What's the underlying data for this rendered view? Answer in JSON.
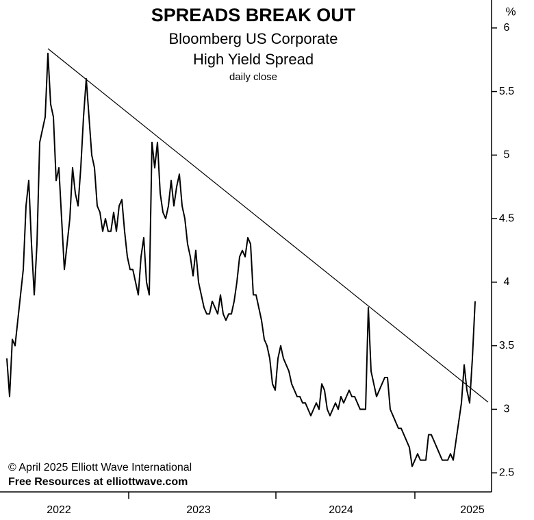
{
  "chart_data": {
    "type": "line",
    "title": "SPREADS BREAK OUT",
    "subtitle": [
      "Bloomberg US Corporate",
      "High Yield Spread"
    ],
    "note": "daily close",
    "y_unit": "%",
    "credits": [
      "© April 2025  Elliott Wave International",
      "Free Resources at elliottwave.com"
    ],
    "color": "#000000",
    "categories": [
      null,
      null,
      null,
      null,
      null,
      null,
      null,
      null,
      null,
      null,
      null,
      null,
      null,
      null,
      null,
      null,
      null,
      null,
      null,
      "2022",
      null,
      null,
      null,
      null,
      null,
      null,
      null,
      null,
      null,
      null,
      null,
      null,
      null,
      null,
      null,
      null,
      null,
      null,
      null,
      null,
      null,
      null,
      null,
      null,
      null,
      null,
      null,
      null,
      null,
      null,
      null,
      null,
      null,
      null,
      null,
      null,
      null,
      null,
      null,
      null,
      null,
      null,
      null,
      null,
      null,
      null,
      null,
      null,
      null,
      null,
      "2023",
      null,
      null,
      null,
      null,
      null,
      null,
      null,
      null,
      null,
      null,
      null,
      null,
      null,
      null,
      null,
      null,
      null,
      null,
      null,
      null,
      null,
      null,
      null,
      null,
      null,
      null,
      null,
      null,
      null,
      null,
      null,
      null,
      null,
      null,
      null,
      null,
      null,
      null,
      null,
      null,
      null,
      null,
      null,
      null,
      null,
      null,
      null,
      null,
      null,
      null,
      null,
      "2024",
      null,
      null,
      null,
      null,
      null,
      null,
      null,
      null,
      null,
      null,
      null,
      null,
      null,
      null,
      null,
      null,
      null,
      null,
      null,
      null,
      null,
      null,
      null,
      null,
      null,
      null,
      null,
      null,
      null,
      null,
      null,
      null,
      null,
      null,
      null,
      null,
      null,
      null,
      null,
      null,
      null,
      null,
      null,
      null,
      null,
      null,
      null,
      "2025",
      null
    ],
    "values": [
      3.4,
      3.1,
      3.55,
      3.5,
      3.7,
      3.9,
      4.1,
      4.6,
      4.8,
      4.3,
      3.9,
      4.3,
      5.1,
      5.2,
      5.3,
      5.8,
      5.4,
      5.3,
      4.8,
      4.9,
      4.5,
      4.1,
      4.3,
      4.5,
      4.9,
      4.7,
      4.6,
      4.9,
      5.3,
      5.6,
      5.3,
      5.0,
      4.9,
      4.6,
      4.55,
      4.4,
      4.5,
      4.4,
      4.4,
      4.55,
      4.4,
      4.6,
      4.65,
      4.4,
      4.2,
      4.1,
      4.1,
      4.0,
      3.9,
      4.2,
      4.35,
      4.0,
      3.9,
      5.1,
      4.9,
      5.1,
      4.7,
      4.55,
      4.5,
      4.6,
      4.8,
      4.6,
      4.75,
      4.85,
      4.6,
      4.5,
      4.3,
      4.2,
      4.05,
      4.25,
      4.0,
      3.9,
      3.8,
      3.75,
      3.75,
      3.85,
      3.8,
      3.75,
      3.9,
      3.75,
      3.7,
      3.75,
      3.75,
      3.85,
      4.0,
      4.2,
      4.25,
      4.2,
      4.35,
      4.3,
      3.9,
      3.9,
      3.8,
      3.7,
      3.55,
      3.5,
      3.4,
      3.2,
      3.15,
      3.4,
      3.5,
      3.4,
      3.35,
      3.3,
      3.2,
      3.15,
      3.1,
      3.1,
      3.05,
      3.05,
      3.0,
      2.95,
      3.0,
      3.05,
      3.0,
      3.2,
      3.15,
      3.0,
      2.95,
      3.0,
      3.05,
      3.0,
      3.1,
      3.05,
      3.1,
      3.15,
      3.1,
      3.1,
      3.05,
      3.0,
      3.0,
      3.0,
      3.8,
      3.3,
      3.2,
      3.1,
      3.15,
      3.2,
      3.25,
      3.25,
      3.0,
      2.95,
      2.9,
      2.85,
      2.85,
      2.8,
      2.75,
      2.7,
      2.55,
      2.6,
      2.65,
      2.6,
      2.6,
      2.6,
      2.8,
      2.8,
      2.75,
      2.7,
      2.65,
      2.6,
      2.6,
      2.6,
      2.65,
      2.6,
      2.75,
      2.9,
      3.05,
      3.35,
      3.15,
      3.05,
      3.4,
      3.85
    ],
    "ylim": [
      2.35,
      6.22
    ],
    "yticks": [
      2.5,
      3,
      3.5,
      4,
      4.5,
      5,
      5.5,
      6
    ]
  }
}
